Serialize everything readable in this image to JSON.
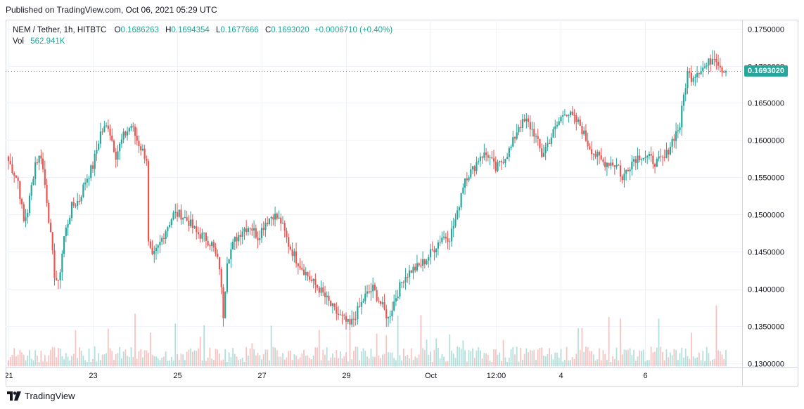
{
  "publish_line": "Published on TradingView.com, Oct 06, 2021 05:29 UTC",
  "legend": {
    "symbol": "NEM / Tether, 1h, HITBTC",
    "open_label": "O",
    "open": "0.1686263",
    "high_label": "H",
    "high": "0.1694354",
    "low_label": "L",
    "low": "0.1677666",
    "close_label": "C",
    "close": "0.1693020",
    "change": "+0.0006710 (+0.40%)",
    "vol_label": "Vol",
    "vol": "562.941K"
  },
  "last_price_label": "0.1693020",
  "footer": {
    "brand": "TradingView",
    "logo_icon": "tradingview-logo-icon"
  },
  "colors": {
    "up": "#26a69a",
    "down": "#ef5350",
    "grid": "#f0f3fa",
    "axis_text": "#131722"
  },
  "chart_data": {
    "type": "candlestick",
    "title": "NEM / Tether, 1h, HITBTC",
    "xlabel": "",
    "ylabel": "",
    "ylim": [
      0.1295,
      0.1762
    ],
    "y_ticks": [
      "0.1750000",
      "0.1700000",
      "0.1650000",
      "0.1600000",
      "0.1550000",
      "0.1500000",
      "0.1450000",
      "0.1400000",
      "0.1350000",
      "0.1300000"
    ],
    "x_ticks": [
      "21",
      "23",
      "25",
      "27",
      "29",
      "Oct",
      "12:00",
      "4",
      "6"
    ],
    "x_tick_index": [
      0,
      44,
      88,
      132,
      176,
      220,
      254,
      288,
      332
    ],
    "last_price": 0.169302,
    "grid": true,
    "hours_per_day": 22,
    "close_keyframes": [
      [
        0,
        0.1572
      ],
      [
        5,
        0.1545
      ],
      [
        8,
        0.149
      ],
      [
        10,
        0.1505
      ],
      [
        14,
        0.157
      ],
      [
        17,
        0.158
      ],
      [
        20,
        0.152
      ],
      [
        22,
        0.147
      ],
      [
        24,
        0.142
      ],
      [
        26,
        0.1405
      ],
      [
        29,
        0.147
      ],
      [
        33,
        0.151
      ],
      [
        37,
        0.152
      ],
      [
        40,
        0.1545
      ],
      [
        44,
        0.1565
      ],
      [
        48,
        0.161
      ],
      [
        52,
        0.162
      ],
      [
        56,
        0.158
      ],
      [
        60,
        0.1605
      ],
      [
        64,
        0.162
      ],
      [
        67,
        0.16
      ],
      [
        70,
        0.1585
      ],
      [
        72,
        0.1575
      ],
      [
        73,
        0.146
      ],
      [
        75,
        0.144
      ],
      [
        78,
        0.1455
      ],
      [
        82,
        0.148
      ],
      [
        86,
        0.15
      ],
      [
        90,
        0.15
      ],
      [
        94,
        0.149
      ],
      [
        98,
        0.1475
      ],
      [
        102,
        0.147
      ],
      [
        106,
        0.146
      ],
      [
        110,
        0.143
      ],
      [
        112,
        0.1365
      ],
      [
        114,
        0.144
      ],
      [
        118,
        0.1465
      ],
      [
        122,
        0.148
      ],
      [
        126,
        0.1485
      ],
      [
        130,
        0.147
      ],
      [
        134,
        0.149
      ],
      [
        138,
        0.15
      ],
      [
        142,
        0.149
      ],
      [
        146,
        0.146
      ],
      [
        150,
        0.144
      ],
      [
        154,
        0.1425
      ],
      [
        158,
        0.141
      ],
      [
        162,
        0.14
      ],
      [
        166,
        0.1385
      ],
      [
        170,
        0.137
      ],
      [
        174,
        0.136
      ],
      [
        178,
        0.135
      ],
      [
        182,
        0.137
      ],
      [
        186,
        0.139
      ],
      [
        190,
        0.14
      ],
      [
        194,
        0.138
      ],
      [
        198,
        0.136
      ],
      [
        202,
        0.139
      ],
      [
        206,
        0.1415
      ],
      [
        210,
        0.1425
      ],
      [
        214,
        0.143
      ],
      [
        218,
        0.144
      ],
      [
        222,
        0.1455
      ],
      [
        226,
        0.147
      ],
      [
        230,
        0.147
      ],
      [
        234,
        0.15
      ],
      [
        236,
        0.153
      ],
      [
        238,
        0.155
      ],
      [
        242,
        0.156
      ],
      [
        246,
        0.158
      ],
      [
        250,
        0.158
      ],
      [
        254,
        0.156
      ],
      [
        258,
        0.1575
      ],
      [
        262,
        0.159
      ],
      [
        266,
        0.162
      ],
      [
        270,
        0.1625
      ],
      [
        274,
        0.161
      ],
      [
        278,
        0.158
      ],
      [
        282,
        0.16
      ],
      [
        286,
        0.162
      ],
      [
        290,
        0.164
      ],
      [
        294,
        0.163
      ],
      [
        298,
        0.162
      ],
      [
        302,
        0.1595
      ],
      [
        306,
        0.158
      ],
      [
        310,
        0.157
      ],
      [
        314,
        0.157
      ],
      [
        318,
        0.1565
      ],
      [
        320,
        0.1545
      ],
      [
        322,
        0.156
      ],
      [
        326,
        0.1575
      ],
      [
        330,
        0.158
      ],
      [
        334,
        0.1575
      ],
      [
        338,
        0.157
      ],
      [
        342,
        0.1575
      ],
      [
        346,
        0.16
      ],
      [
        350,
        0.162
      ],
      [
        352,
        0.166
      ],
      [
        354,
        0.169
      ],
      [
        356,
        0.1685
      ],
      [
        360,
        0.1695
      ],
      [
        364,
        0.17
      ],
      [
        368,
        0.1715
      ],
      [
        371,
        0.17
      ],
      [
        374,
        0.169
      ]
    ],
    "ohlc_example_last": {
      "open": 0.1686263,
      "high": 0.1694354,
      "low": 0.1677666,
      "close": 0.169302
    },
    "volume_max_label": "562.941K"
  }
}
